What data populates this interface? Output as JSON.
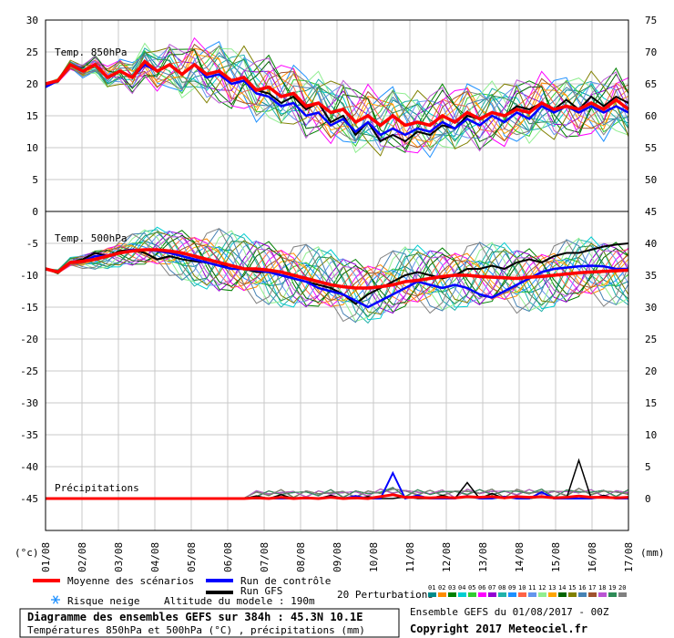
{
  "chart_data": {
    "type": "line",
    "title": "Diagramme des ensembles GEFS sur 384h : 45.3N 10.1E",
    "subtitle": "Températures 850hPa et 500hPa (°C) , précipitations (mm)",
    "run_info": "Ensemble GEFS du 01/08/2017 - 00Z",
    "copyright": "Copyright 2017 Meteociel.fr",
    "altitude": "Altitude du modele : 190m",
    "left_unit": "(°c)",
    "right_unit": "(mm)",
    "x_ticks": [
      "01/08",
      "02/08",
      "03/08",
      "04/08",
      "05/08",
      "06/08",
      "07/08",
      "08/08",
      "09/08",
      "10/08",
      "11/08",
      "12/08",
      "13/08",
      "14/08",
      "15/08",
      "16/08",
      "17/08"
    ],
    "left_axis_ticks": [
      "30",
      "25",
      "20",
      "15",
      "10",
      "5",
      "0",
      "-5",
      "-10",
      "-15",
      "-20",
      "-25",
      "-30",
      "-35",
      "-40",
      "-45"
    ],
    "left_axis_range": [
      -50,
      30
    ],
    "right_axis_ticks": [
      "75",
      "70",
      "65",
      "60",
      "55",
      "50",
      "45",
      "40",
      "35",
      "30",
      "25",
      "20",
      "15",
      "10",
      "5",
      "0"
    ],
    "right_axis_range": [
      -5,
      75
    ],
    "grid": true,
    "panels": [
      {
        "label": "Temp. 850hPa",
        "var": "t850",
        "range_c": [
          0,
          30
        ]
      },
      {
        "label": "Temp. 500hPa",
        "var": "t500",
        "range_c": [
          -30,
          0
        ]
      },
      {
        "label": "Précipitations",
        "var": "precip",
        "range_mm": [
          0,
          15
        ]
      }
    ],
    "perturbation_colors": [
      "#008b8b",
      "#ff8c00",
      "#008000",
      "#00ced1",
      "#32cd32",
      "#ff00ff",
      "#9400d3",
      "#20b2aa",
      "#1e90ff",
      "#ff6347",
      "#6495ed",
      "#90ee90",
      "#ffa500",
      "#006400",
      "#808000",
      "#4682b4",
      "#a0522d",
      "#ba55d3",
      "#2e8b57",
      "#808080"
    ],
    "perturbation_numbers": [
      "01",
      "02",
      "03",
      "04",
      "05",
      "06",
      "07",
      "08",
      "09",
      "10",
      "11",
      "12",
      "13",
      "14",
      "15",
      "16",
      "17",
      "18",
      "19",
      "20"
    ],
    "mean_color": "#ff0000",
    "control_color": "#0000ff",
    "gfs_color": "#000000",
    "t850_mean": [
      20,
      20.5,
      23,
      22,
      23,
      21,
      22,
      21,
      23.5,
      22,
      23,
      21.5,
      23,
      21.5,
      22,
      20.5,
      21,
      19,
      19.5,
      18,
      18.5,
      16.5,
      17,
      15.5,
      16,
      14,
      15,
      13.5,
      15,
      13.5,
      14,
      13.5,
      15,
      14,
      15.5,
      14.5,
      15.5,
      15,
      16,
      15.5,
      17,
      16,
      16.5,
      16,
      17,
      16,
      17.5,
      16
    ],
    "t850_gfs": [
      20,
      20.5,
      23,
      22,
      23,
      21,
      22,
      21,
      23.5,
      22,
      23,
      21.5,
      23,
      21.5,
      22,
      20.5,
      21,
      19,
      18.5,
      17,
      18,
      16,
      17,
      14,
      15,
      12,
      14,
      11,
      12,
      11,
      12.5,
      12,
      13.5,
      13,
      15,
      14.5,
      15.5,
      15,
      16.5,
      16,
      17,
      16,
      17.5,
      16,
      18,
      16.5,
      18,
      17
    ],
    "t850_control": [
      19.5,
      20.5,
      23,
      22,
      23,
      21,
      22,
      21,
      23,
      22,
      23,
      21.5,
      23,
      21,
      21.5,
      20,
      20.5,
      18.5,
      18,
      16.5,
      17,
      15,
      15.5,
      13.5,
      14.5,
      12.5,
      14,
      12,
      13,
      12,
      13,
      12.5,
      14,
      13,
      14.5,
      13.5,
      15,
      14,
      15.5,
      14.5,
      16.5,
      15.5,
      16.5,
      15.5,
      16.5,
      15.5,
      16.5,
      15.5
    ],
    "t500_mean": [
      -9,
      -9.5,
      -8,
      -7.8,
      -7.5,
      -7,
      -6.5,
      -6.2,
      -6,
      -6,
      -6.2,
      -6.5,
      -7,
      -7.5,
      -8,
      -8.5,
      -9,
      -9,
      -9.2,
      -9.5,
      -10,
      -10.5,
      -11,
      -11.5,
      -11.8,
      -12,
      -12,
      -11.8,
      -11.5,
      -11,
      -10.8,
      -10.5,
      -10.2,
      -10,
      -10,
      -10.2,
      -10.3,
      -10.4,
      -10.5,
      -10.3,
      -10.2,
      -10,
      -9.8,
      -9.6,
      -9.5,
      -9.4,
      -9.3,
      -9.2
    ],
    "t500_gfs": [
      -9,
      -9.5,
      -8,
      -7.5,
      -6.5,
      -7,
      -6.2,
      -6,
      -6.5,
      -7.5,
      -7,
      -7.5,
      -7.8,
      -8,
      -8.5,
      -8.5,
      -9,
      -9.5,
      -9.5,
      -10,
      -10.5,
      -11,
      -11.5,
      -12,
      -13,
      -14.5,
      -13,
      -12,
      -11,
      -10,
      -9.5,
      -10,
      -10.5,
      -10,
      -9,
      -9,
      -8.5,
      -9,
      -8,
      -7.5,
      -8,
      -7,
      -6.5,
      -6.5,
      -6,
      -5.5,
      -5.2,
      -5
    ],
    "t500_control": [
      -9,
      -9.5,
      -8,
      -7.8,
      -7,
      -7,
      -6.5,
      -6,
      -6,
      -6.2,
      -6.5,
      -7,
      -7.5,
      -8,
      -8.5,
      -9,
      -9,
      -9.2,
      -9.5,
      -10,
      -10.5,
      -11,
      -12,
      -12.5,
      -13,
      -14,
      -15,
      -14,
      -13,
      -12,
      -11,
      -11.5,
      -12,
      -11.5,
      -12,
      -13,
      -13.5,
      -12.5,
      -11.5,
      -10.5,
      -9.5,
      -9,
      -8.8,
      -8.6,
      -8.5,
      -8.6,
      -9,
      -9
    ],
    "precip_gfs_mm": [
      0,
      0,
      0,
      0,
      0,
      0,
      0,
      0,
      0,
      0,
      0,
      0,
      0,
      0,
      0,
      0,
      0,
      0.4,
      0,
      0.6,
      0,
      0,
      0,
      0.5,
      0,
      0,
      0.3,
      0,
      0,
      0.3,
      0,
      0,
      0.5,
      0,
      2.5,
      0,
      0.8,
      0,
      0.4,
      0,
      0.3,
      0,
      0,
      6,
      0,
      0.5,
      0,
      0
    ],
    "precip_control_mm": [
      0,
      0,
      0,
      0,
      0,
      0,
      0,
      0,
      0,
      0,
      0,
      0,
      0,
      0,
      0,
      0,
      0,
      0,
      0,
      0,
      0,
      0,
      0,
      0.3,
      0,
      0.4,
      0,
      0,
      4,
      0,
      0.5,
      0,
      0,
      0,
      0.4,
      0,
      0,
      0.3,
      0,
      0,
      1,
      0,
      0,
      0,
      0,
      0.3,
      0,
      0
    ],
    "precip_mean_mm": [
      0,
      0,
      0,
      0,
      0,
      0,
      0,
      0,
      0,
      0,
      0,
      0,
      0,
      0,
      0,
      0,
      0,
      0.1,
      0,
      0.2,
      0,
      0.1,
      0,
      0.2,
      0,
      0.1,
      0,
      0.3,
      0.6,
      0.2,
      0.2,
      0.1,
      0.2,
      0.1,
      0.3,
      0.2,
      0.3,
      0.1,
      0.3,
      0.2,
      0.3,
      0.1,
      0.2,
      0.4,
      0.2,
      0.2,
      0.1,
      0.2
    ]
  },
  "legend": {
    "mean": "Moyenne des scénarios",
    "control": "Run de contrôle",
    "gfs": "Run GFS",
    "snow": "Risque neige",
    "perturbations": "20 Perturbations"
  },
  "icons": {
    "snow": "snowflake-icon"
  }
}
